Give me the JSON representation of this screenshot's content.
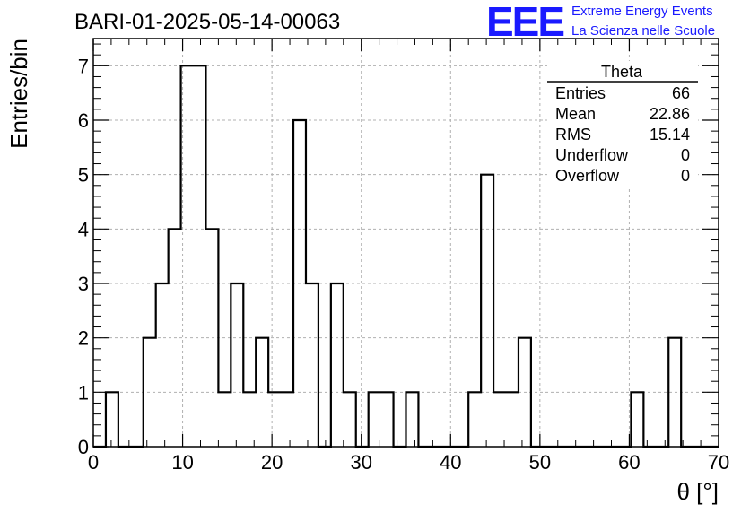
{
  "chart_data": {
    "type": "bar",
    "title": "BARI-01-2025-05-14-00063",
    "xlabel": "θ [°]",
    "ylabel": "Entries/bin",
    "xlim": [
      0,
      70
    ],
    "ylim": [
      0,
      7.5
    ],
    "bin_width": 1.4,
    "x_ticks": [
      0,
      10,
      20,
      30,
      40,
      50,
      60,
      70
    ],
    "y_ticks": [
      0,
      1,
      2,
      3,
      4,
      5,
      6,
      7
    ],
    "grid": true,
    "values": [
      0,
      1,
      0,
      0,
      2,
      3,
      4,
      7,
      7,
      4,
      1,
      3,
      1,
      2,
      1,
      1,
      6,
      3,
      0,
      3,
      1,
      0,
      1,
      1,
      0,
      1,
      0,
      0,
      0,
      0,
      1,
      5,
      1,
      1,
      2,
      0,
      0,
      0,
      0,
      0,
      0,
      0,
      0,
      1,
      0,
      0,
      2,
      0,
      0,
      0
    ],
    "line_color": "#000000"
  },
  "stats_box": {
    "title": "Theta",
    "rows": [
      {
        "label": "Entries",
        "value": "66"
      },
      {
        "label": "Mean",
        "value": "22.86"
      },
      {
        "label": "RMS",
        "value": "15.14"
      },
      {
        "label": "Underflow",
        "value": "0"
      },
      {
        "label": "Overflow",
        "value": "0"
      }
    ]
  },
  "logo": {
    "mark": "EEE",
    "line1": "Extreme Energy Events",
    "line2": "La Scienza nelle Scuole",
    "color": "#1a1aff"
  }
}
